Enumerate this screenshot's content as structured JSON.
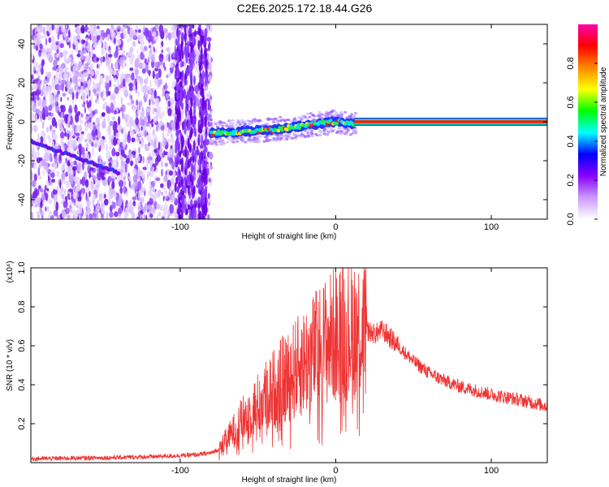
{
  "title": "C2E6.2025.172.18.44.G26",
  "chart_data": [
    {
      "type": "heatmap",
      "xlabel": "Height of straight line (km)",
      "ylabel": "Frequency (Hz)",
      "xlim": [
        -196,
        136
      ],
      "ylim": [
        -50,
        50
      ],
      "x_ticks": [
        -100,
        0,
        100
      ],
      "x_tick_labels": [
        "-100",
        "0",
        "100"
      ],
      "y_ticks": [
        -40,
        -20,
        0,
        20,
        40
      ],
      "y_tick_labels": [
        "-40",
        "-20",
        "0",
        "20",
        "40"
      ],
      "colorbar": {
        "label": "Normalized spectral amplitude",
        "range": [
          0,
          1
        ],
        "ticks": [
          0.0,
          0.2,
          0.4,
          0.6,
          0.8
        ],
        "tick_labels": [
          "0.0",
          "0.2",
          "0.4",
          "0.6",
          "0.8"
        ],
        "colors": [
          "#ffffff",
          "#cc99ff",
          "#8800ff",
          "#0000ff",
          "#00ffff",
          "#00ff00",
          "#ffff00",
          "#ff8800",
          "#ff0000",
          "#ff00aa"
        ]
      },
      "features": {
        "noise_region_x": [
          -196,
          -80
        ],
        "diagonal_track": {
          "x": [
            -196,
            -140
          ],
          "y": [
            -10,
            -26
          ]
        },
        "main_track": {
          "x": [
            -80,
            -40,
            -20,
            0,
            10,
            136
          ],
          "y": [
            -6,
            -4,
            -2,
            0,
            -1,
            0
          ]
        }
      }
    },
    {
      "type": "line",
      "xlabel": "Height of straight line (km)",
      "ylabel": "SNR (10 * v/v)",
      "y_multiplier": "(x10⁴)",
      "xlim": [
        -196,
        136
      ],
      "ylim": [
        0,
        1.0
      ],
      "x_ticks": [
        -100,
        0,
        100
      ],
      "x_tick_labels": [
        "-100",
        "0",
        "100"
      ],
      "y_ticks": [
        0.2,
        0.4,
        0.6,
        0.8,
        1.0
      ],
      "y_tick_labels": [
        "0.2",
        "0.4",
        "0.6",
        "0.8",
        "1.0"
      ],
      "line_color": "#ee3333",
      "envelope": {
        "x": [
          -196,
          -150,
          -120,
          -90,
          -80,
          -75,
          -70,
          -60,
          -50,
          -40,
          -30,
          -20,
          -10,
          0,
          10,
          20,
          25,
          30,
          40,
          50,
          60,
          70,
          80,
          100,
          120,
          136
        ],
        "y": [
          0.02,
          0.025,
          0.03,
          0.04,
          0.05,
          0.07,
          0.12,
          0.22,
          0.3,
          0.38,
          0.45,
          0.52,
          0.6,
          0.66,
          0.7,
          0.68,
          0.66,
          0.68,
          0.6,
          0.52,
          0.46,
          0.42,
          0.39,
          0.35,
          0.32,
          0.29
        ]
      }
    }
  ]
}
